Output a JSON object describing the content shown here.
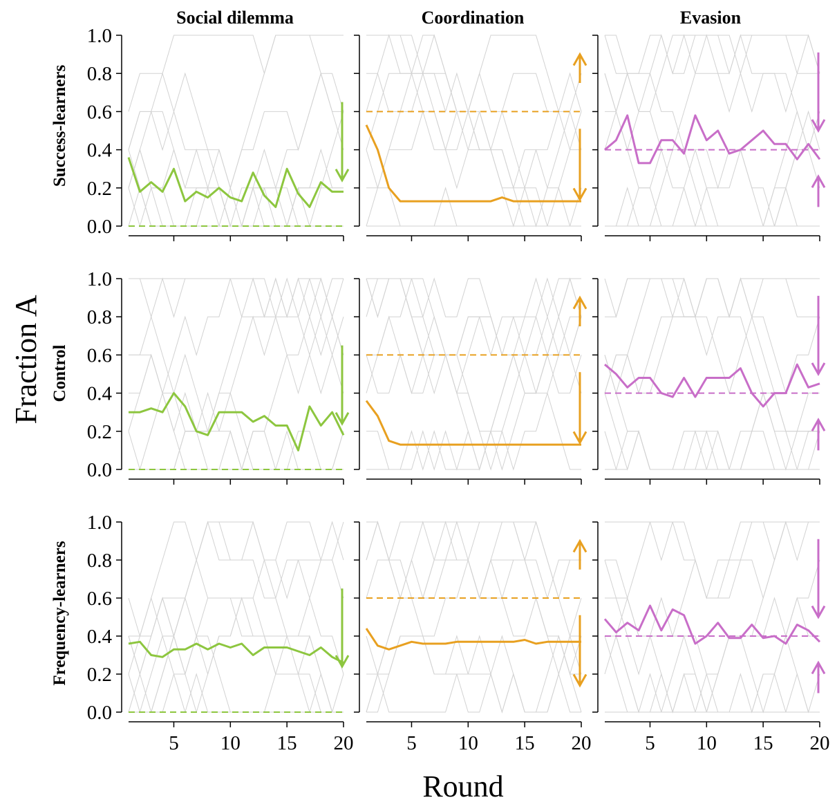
{
  "figure": {
    "x_axis_label": "Round",
    "y_axis_label": "Fraction A",
    "column_titles": [
      "Social dilemma",
      "Coordination",
      "Evasion"
    ],
    "row_titles": [
      "Success-learners",
      "Control",
      "Frequency-learners"
    ],
    "colors": {
      "Social dilemma": "#8dc63f",
      "Coordination": "#e8a020",
      "Evasion": "#c86ec8",
      "individual_groups": "#d2d2d2",
      "axis": "#000000"
    }
  },
  "chart_data": [
    {
      "type": "line",
      "row": "Success-learners",
      "column": "Social dilemma",
      "xlim": [
        1,
        20
      ],
      "ylim": [
        0,
        1
      ],
      "x_ticks": [
        5,
        10,
        15,
        20
      ],
      "y_ticks": [
        0.0,
        0.2,
        0.4,
        0.6,
        0.8,
        1.0
      ],
      "x": [
        1,
        2,
        3,
        4,
        5,
        6,
        7,
        8,
        9,
        10,
        11,
        12,
        13,
        14,
        15,
        16,
        17,
        18,
        19,
        20
      ],
      "mean": [
        0.36,
        0.18,
        0.23,
        0.18,
        0.3,
        0.13,
        0.18,
        0.15,
        0.2,
        0.15,
        0.13,
        0.28,
        0.16,
        0.1,
        0.3,
        0.17,
        0.1,
        0.23,
        0.18,
        0.18
      ],
      "threshold": 0.0,
      "arrows": [
        {
          "from": 0.65,
          "to": 0.24,
          "direction": "down"
        }
      ]
    },
    {
      "type": "line",
      "row": "Success-learners",
      "column": "Coordination",
      "xlim": [
        1,
        20
      ],
      "ylim": [
        0,
        1
      ],
      "x_ticks": [
        5,
        10,
        15,
        20
      ],
      "y_ticks": [
        0.0,
        0.2,
        0.4,
        0.6,
        0.8,
        1.0
      ],
      "x": [
        1,
        2,
        3,
        4,
        5,
        6,
        7,
        8,
        9,
        10,
        11,
        12,
        13,
        14,
        15,
        16,
        17,
        18,
        19,
        20
      ],
      "mean": [
        0.53,
        0.4,
        0.2,
        0.13,
        0.13,
        0.13,
        0.13,
        0.13,
        0.13,
        0.13,
        0.13,
        0.13,
        0.15,
        0.13,
        0.13,
        0.13,
        0.13,
        0.13,
        0.13,
        0.13
      ],
      "threshold": 0.6,
      "arrows": [
        {
          "from": 0.75,
          "to": 0.9,
          "direction": "up"
        },
        {
          "from": 0.51,
          "to": 0.14,
          "direction": "down"
        }
      ]
    },
    {
      "type": "line",
      "row": "Success-learners",
      "column": "Evasion",
      "xlim": [
        1,
        20
      ],
      "ylim": [
        0,
        1
      ],
      "x_ticks": [
        5,
        10,
        15,
        20
      ],
      "y_ticks": [
        0.0,
        0.2,
        0.4,
        0.6,
        0.8,
        1.0
      ],
      "x": [
        1,
        2,
        3,
        4,
        5,
        6,
        7,
        8,
        9,
        10,
        11,
        12,
        13,
        14,
        15,
        16,
        17,
        18,
        19,
        20
      ],
      "mean": [
        0.4,
        0.45,
        0.58,
        0.33,
        0.33,
        0.45,
        0.45,
        0.38,
        0.58,
        0.45,
        0.5,
        0.38,
        0.4,
        0.45,
        0.5,
        0.43,
        0.43,
        0.35,
        0.43,
        0.35
      ],
      "threshold": 0.4,
      "arrows": [
        {
          "from": 0.91,
          "to": 0.5,
          "direction": "down"
        },
        {
          "from": 0.1,
          "to": 0.26,
          "direction": "up"
        }
      ]
    },
    {
      "type": "line",
      "row": "Control",
      "column": "Social dilemma",
      "xlim": [
        1,
        20
      ],
      "ylim": [
        0,
        1
      ],
      "x_ticks": [
        5,
        10,
        15,
        20
      ],
      "y_ticks": [
        0.0,
        0.2,
        0.4,
        0.6,
        0.8,
        1.0
      ],
      "x": [
        1,
        2,
        3,
        4,
        5,
        6,
        7,
        8,
        9,
        10,
        11,
        12,
        13,
        14,
        15,
        16,
        17,
        18,
        19,
        20
      ],
      "mean": [
        0.3,
        0.3,
        0.32,
        0.3,
        0.4,
        0.33,
        0.2,
        0.18,
        0.3,
        0.3,
        0.3,
        0.25,
        0.28,
        0.23,
        0.23,
        0.1,
        0.33,
        0.23,
        0.3,
        0.18
      ],
      "threshold": 0.0,
      "arrows": [
        {
          "from": 0.65,
          "to": 0.24,
          "direction": "down"
        }
      ]
    },
    {
      "type": "line",
      "row": "Control",
      "column": "Coordination",
      "xlim": [
        1,
        20
      ],
      "ylim": [
        0,
        1
      ],
      "x_ticks": [
        5,
        10,
        15,
        20
      ],
      "y_ticks": [
        0.0,
        0.2,
        0.4,
        0.6,
        0.8,
        1.0
      ],
      "x": [
        1,
        2,
        3,
        4,
        5,
        6,
        7,
        8,
        9,
        10,
        11,
        12,
        13,
        14,
        15,
        16,
        17,
        18,
        19,
        20
      ],
      "mean": [
        0.36,
        0.28,
        0.15,
        0.13,
        0.13,
        0.13,
        0.13,
        0.13,
        0.13,
        0.13,
        0.13,
        0.13,
        0.13,
        0.13,
        0.13,
        0.13,
        0.13,
        0.13,
        0.13,
        0.13
      ],
      "threshold": 0.6,
      "arrows": [
        {
          "from": 0.75,
          "to": 0.9,
          "direction": "up"
        },
        {
          "from": 0.51,
          "to": 0.14,
          "direction": "down"
        }
      ]
    },
    {
      "type": "line",
      "row": "Control",
      "column": "Evasion",
      "xlim": [
        1,
        20
      ],
      "ylim": [
        0,
        1
      ],
      "x_ticks": [
        5,
        10,
        15,
        20
      ],
      "y_ticks": [
        0.0,
        0.2,
        0.4,
        0.6,
        0.8,
        1.0
      ],
      "x": [
        1,
        2,
        3,
        4,
        5,
        6,
        7,
        8,
        9,
        10,
        11,
        12,
        13,
        14,
        15,
        16,
        17,
        18,
        19,
        20
      ],
      "mean": [
        0.55,
        0.5,
        0.43,
        0.48,
        0.48,
        0.4,
        0.38,
        0.48,
        0.38,
        0.48,
        0.48,
        0.48,
        0.53,
        0.4,
        0.33,
        0.4,
        0.4,
        0.55,
        0.43,
        0.45
      ],
      "threshold": 0.4,
      "arrows": [
        {
          "from": 0.91,
          "to": 0.5,
          "direction": "down"
        },
        {
          "from": 0.1,
          "to": 0.26,
          "direction": "up"
        }
      ]
    },
    {
      "type": "line",
      "row": "Frequency-learners",
      "column": "Social dilemma",
      "xlim": [
        1,
        20
      ],
      "ylim": [
        0,
        1
      ],
      "x_ticks": [
        5,
        10,
        15,
        20
      ],
      "y_ticks": [
        0.0,
        0.2,
        0.4,
        0.6,
        0.8,
        1.0
      ],
      "x": [
        1,
        2,
        3,
        4,
        5,
        6,
        7,
        8,
        9,
        10,
        11,
        12,
        13,
        14,
        15,
        16,
        17,
        18,
        19,
        20
      ],
      "mean": [
        0.36,
        0.37,
        0.3,
        0.29,
        0.33,
        0.33,
        0.36,
        0.33,
        0.36,
        0.34,
        0.36,
        0.3,
        0.34,
        0.34,
        0.34,
        0.32,
        0.3,
        0.34,
        0.29,
        0.26
      ],
      "threshold": 0.0,
      "arrows": [
        {
          "from": 0.65,
          "to": 0.24,
          "direction": "down"
        }
      ]
    },
    {
      "type": "line",
      "row": "Frequency-learners",
      "column": "Coordination",
      "xlim": [
        1,
        20
      ],
      "ylim": [
        0,
        1
      ],
      "x_ticks": [
        5,
        10,
        15,
        20
      ],
      "y_ticks": [
        0.0,
        0.2,
        0.4,
        0.6,
        0.8,
        1.0
      ],
      "x": [
        1,
        2,
        3,
        4,
        5,
        6,
        7,
        8,
        9,
        10,
        11,
        12,
        13,
        14,
        15,
        16,
        17,
        18,
        19,
        20
      ],
      "mean": [
        0.44,
        0.35,
        0.33,
        0.35,
        0.37,
        0.36,
        0.36,
        0.36,
        0.37,
        0.37,
        0.37,
        0.37,
        0.37,
        0.37,
        0.38,
        0.36,
        0.37,
        0.37,
        0.37,
        0.37
      ],
      "threshold": 0.6,
      "arrows": [
        {
          "from": 0.75,
          "to": 0.9,
          "direction": "up"
        },
        {
          "from": 0.51,
          "to": 0.14,
          "direction": "down"
        }
      ]
    },
    {
      "type": "line",
      "row": "Frequency-learners",
      "column": "Evasion",
      "xlim": [
        1,
        20
      ],
      "ylim": [
        0,
        1
      ],
      "x_ticks": [
        5,
        10,
        15,
        20
      ],
      "y_ticks": [
        0.0,
        0.2,
        0.4,
        0.6,
        0.8,
        1.0
      ],
      "x": [
        1,
        2,
        3,
        4,
        5,
        6,
        7,
        8,
        9,
        10,
        11,
        12,
        13,
        14,
        15,
        16,
        17,
        18,
        19,
        20
      ],
      "mean": [
        0.49,
        0.42,
        0.47,
        0.43,
        0.56,
        0.43,
        0.54,
        0.51,
        0.36,
        0.4,
        0.47,
        0.39,
        0.39,
        0.46,
        0.39,
        0.4,
        0.36,
        0.46,
        0.43,
        0.37
      ],
      "threshold": 0.4,
      "arrows": [
        {
          "from": 0.91,
          "to": 0.5,
          "direction": "down"
        },
        {
          "from": 0.1,
          "to": 0.26,
          "direction": "up"
        }
      ]
    }
  ]
}
